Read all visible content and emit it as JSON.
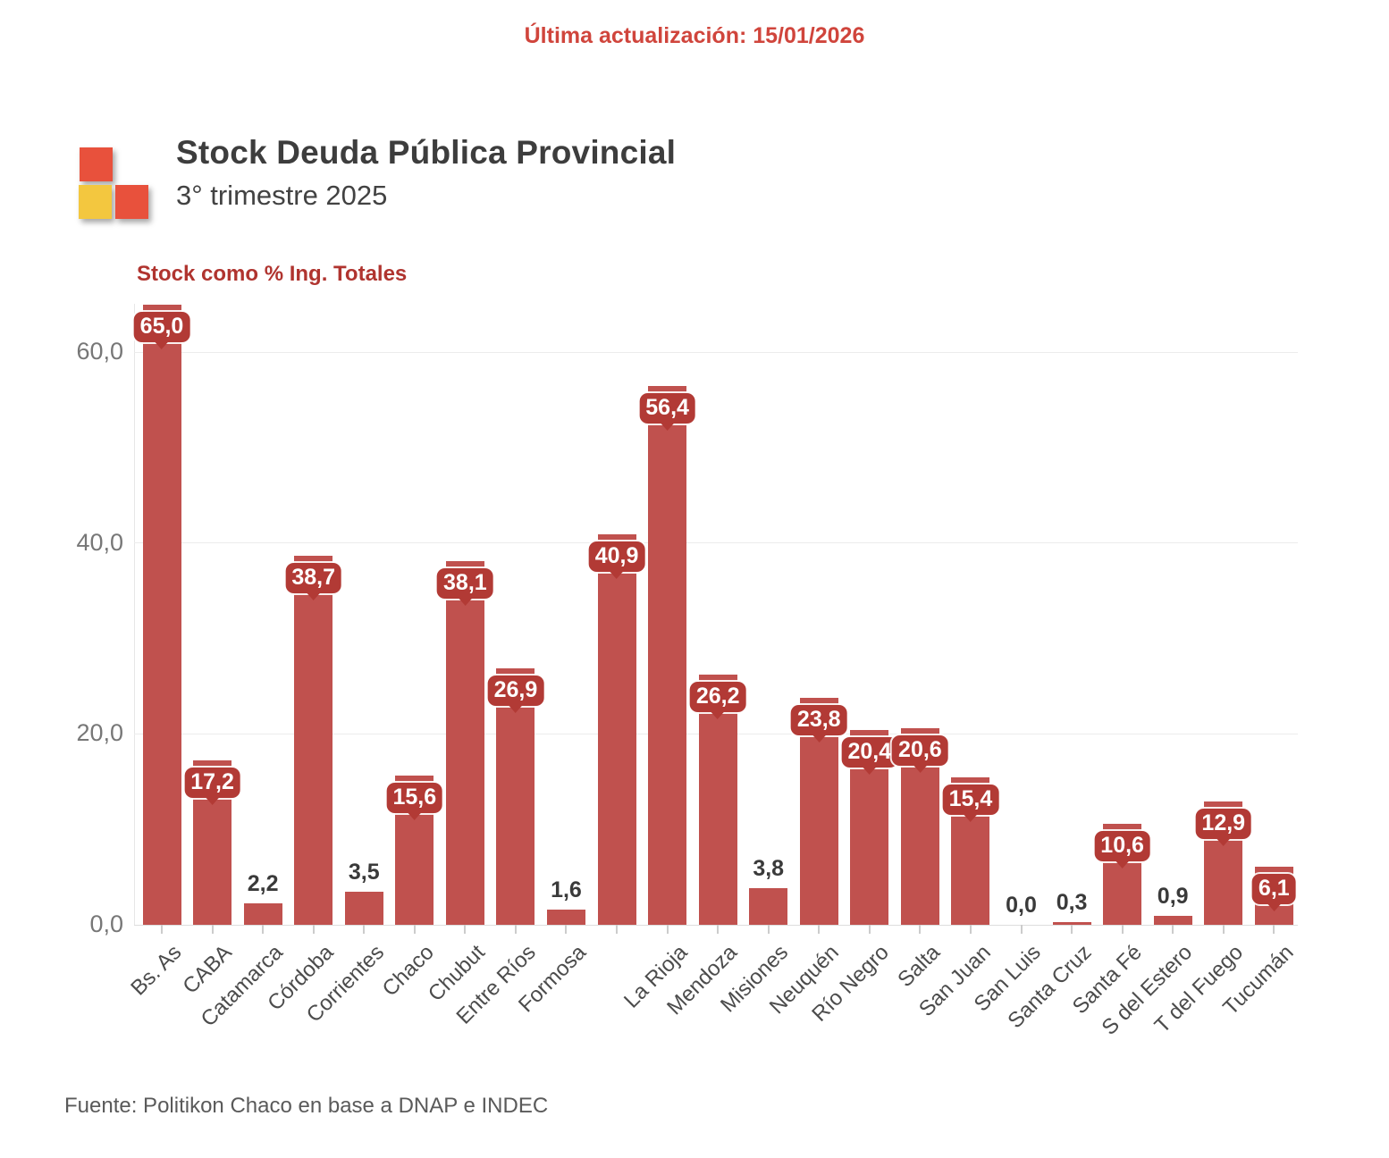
{
  "header": {
    "last_update": "Última actualización: 15/01/2026"
  },
  "brand": {
    "title": "Stock Deuda Pública Provincial",
    "subtitle": "3° trimestre 2025",
    "logo_red": "#e8513c",
    "logo_yellow": "#f3c73f"
  },
  "chart_data": {
    "type": "bar",
    "title": "Stock como % Ing. Totales",
    "categories": [
      "Bs. As",
      "CABA",
      "Catamarca",
      "Córdoba",
      "Corrientes",
      "Chaco",
      "Chubut",
      "Entre Ríos",
      "Formosa",
      "",
      "La Rioja",
      "Mendoza",
      "Misiones",
      "Neuquén",
      "Río Negro",
      "Salta",
      "San Juan",
      "San Luis",
      "Santa Cruz",
      "Santa Fé",
      "S del Estero",
      "T del Fuego",
      "Tucumán"
    ],
    "values": [
      65.0,
      17.2,
      2.2,
      38.7,
      3.5,
      15.6,
      38.1,
      26.9,
      1.6,
      40.9,
      56.4,
      26.2,
      3.8,
      23.8,
      20.4,
      20.6,
      15.4,
      0.0,
      0.3,
      10.6,
      0.9,
      12.9,
      6.1
    ],
    "value_labels": [
      "65,0",
      "17,2",
      "2,2",
      "38,7",
      "3,5",
      "15,6",
      "38,1",
      "26,9",
      "1,6",
      "40,9",
      "56,4",
      "26,2",
      "3,8",
      "23,8",
      "20,4",
      "20,6",
      "15,4",
      "0,0",
      "0,3",
      "10,6",
      "0,9",
      "12,9",
      "6,1"
    ],
    "ytick_values": [
      0,
      20,
      40,
      60
    ],
    "ytick_labels": [
      "0,0",
      "20,0",
      "40,0",
      "60,0"
    ],
    "ylim": [
      0,
      65
    ],
    "grid": true,
    "legend": "none",
    "bar_color": "#c0514e",
    "label_pill_color": "#b23a35",
    "label_pill_threshold": 6
  },
  "footer": {
    "source": "Fuente: Politikon Chaco en base a DNAP e INDEC"
  }
}
